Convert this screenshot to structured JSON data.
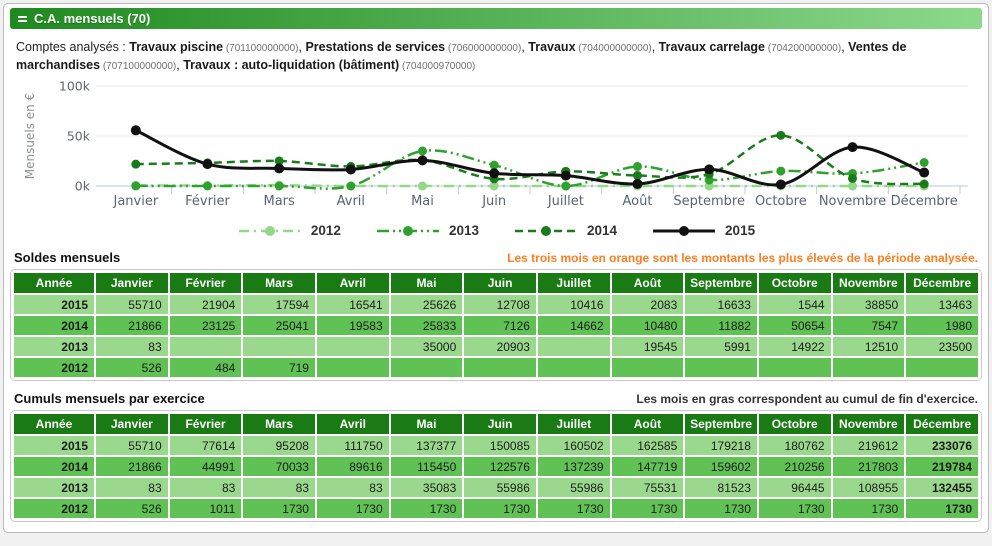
{
  "panel": {
    "title": "C.A. mensuels (70)"
  },
  "accounts": {
    "prefix": "Comptes analysés : ",
    "items": [
      {
        "name": "Travaux piscine",
        "number": "701100000000"
      },
      {
        "name": "Prestations de services",
        "number": "706000000000"
      },
      {
        "name": "Travaux",
        "number": "704000000000"
      },
      {
        "name": "Travaux carrelage",
        "number": "704200000000"
      },
      {
        "name": "Ventes de marchandises",
        "number": "707100000000"
      },
      {
        "name": "Travaux : auto-liquidation (bâtiment)",
        "number": "704000970000"
      }
    ]
  },
  "chart_data": {
    "type": "line",
    "title": "",
    "xlabel": "",
    "ylabel": "Mensuels en €",
    "ylim": [
      0,
      100000
    ],
    "grid": true,
    "legend_position": "bottom",
    "yticks": [
      {
        "v": 0,
        "label": "0k"
      },
      {
        "v": 50000,
        "label": "50k"
      },
      {
        "v": 100000,
        "label": "100k"
      }
    ],
    "categories": [
      "Janvier",
      "Février",
      "Mars",
      "Avril",
      "Mai",
      "Juin",
      "Juillet",
      "Août",
      "Septembre",
      "Octobre",
      "Novembre",
      "Décembre"
    ],
    "series": [
      {
        "name": "2012",
        "color": "#93d788",
        "dash": "10 5 2 5",
        "values": [
          526,
          484,
          719,
          0,
          0,
          0,
          0,
          0,
          0,
          0,
          0,
          0
        ]
      },
      {
        "name": "2013",
        "color": "#2fa12f",
        "dash": "12 4 2 4 2 4",
        "values": [
          83,
          0,
          0,
          0,
          35000,
          20903,
          0,
          19545,
          5991,
          14922,
          12510,
          23500
        ]
      },
      {
        "name": "2014",
        "color": "#1b7a1b",
        "dash": "8 5",
        "values": [
          21866,
          23125,
          25041,
          19583,
          25833,
          7126,
          14662,
          10480,
          11882,
          50654,
          7547,
          1980
        ]
      },
      {
        "name": "2015",
        "color": "#111111",
        "dash": "",
        "values": [
          55710,
          21904,
          17594,
          16541,
          25626,
          12708,
          10416,
          2083,
          16633,
          1544,
          38850,
          13463
        ]
      }
    ]
  },
  "tables": {
    "year_header": "Année",
    "months": [
      "Janvier",
      "Février",
      "Mars",
      "Avril",
      "Mai",
      "Juin",
      "Juillet",
      "Août",
      "Septembre",
      "Octobre",
      "Novembre",
      "Décembre"
    ],
    "soldes": {
      "title": "Soldes mensuels",
      "note": "Les trois mois en orange sont les montants les plus élevés de la période analysée.",
      "rows": [
        {
          "year": "2015",
          "values": [
            "55710",
            "21904",
            "17594",
            "16541",
            "25626",
            "12708",
            "10416",
            "2083",
            "16633",
            "1544",
            "38850",
            "13463"
          ],
          "orange": [
            0,
            10
          ],
          "bold": []
        },
        {
          "year": "2014",
          "values": [
            "21866",
            "23125",
            "25041",
            "19583",
            "25833",
            "7126",
            "14662",
            "10480",
            "11882",
            "50654",
            "7547",
            "1980"
          ],
          "orange": [
            9
          ],
          "bold": []
        },
        {
          "year": "2013",
          "values": [
            "83",
            "",
            "",
            "",
            "35000",
            "20903",
            "",
            "19545",
            "5991",
            "14922",
            "12510",
            "23500"
          ],
          "orange": [],
          "bold": []
        },
        {
          "year": "2012",
          "values": [
            "526",
            "484",
            "719",
            "",
            "",
            "",
            "",
            "",
            "",
            "",
            "",
            ""
          ],
          "orange": [],
          "bold": []
        }
      ]
    },
    "cumuls": {
      "title": "Cumuls mensuels par exercice",
      "note": "Les mois en gras correspondent au cumul de fin d'exercice.",
      "rows": [
        {
          "year": "2015",
          "values": [
            "55710",
            "77614",
            "95208",
            "111750",
            "137377",
            "150085",
            "160502",
            "162585",
            "179218",
            "180762",
            "219612",
            "233076"
          ],
          "orange": [],
          "bold": [
            11
          ]
        },
        {
          "year": "2014",
          "values": [
            "21866",
            "44991",
            "70033",
            "89616",
            "115450",
            "122576",
            "137239",
            "147719",
            "159602",
            "210256",
            "217803",
            "219784"
          ],
          "orange": [],
          "bold": [
            11
          ]
        },
        {
          "year": "2013",
          "values": [
            "83",
            "83",
            "83",
            "83",
            "35083",
            "55986",
            "55986",
            "75531",
            "81523",
            "96445",
            "108955",
            "132455"
          ],
          "orange": [],
          "bold": [
            11
          ]
        },
        {
          "year": "2012",
          "values": [
            "526",
            "1011",
            "1730",
            "1730",
            "1730",
            "1730",
            "1730",
            "1730",
            "1730",
            "1730",
            "1730",
            "1730"
          ],
          "orange": [],
          "bold": [
            11
          ]
        }
      ]
    }
  }
}
